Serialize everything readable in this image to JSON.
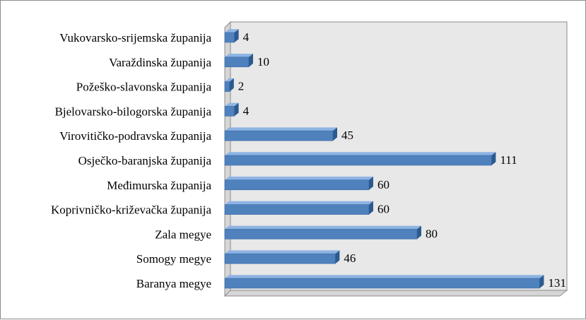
{
  "chart_data": {
    "type": "bar",
    "orientation": "horizontal",
    "style": "3d",
    "categories": [
      "Vukovarsko-srijemska županija",
      "Varaždinska županija",
      "Požeško-slavonska županija",
      "Bjelovarsko-bilogorska županija",
      "Virovitičko-podravska županija",
      "Osječko-baranjska županija",
      "Međimurska županija",
      "Koprivničko-križevačka županija",
      "Zala megye",
      "Somogy megye",
      "Baranya megye"
    ],
    "values": [
      4,
      10,
      2,
      4,
      45,
      111,
      60,
      60,
      80,
      46,
      131
    ],
    "value_labels": [
      "4",
      "10",
      "2",
      "4",
      "45",
      "111",
      "60",
      "60",
      "80",
      "46",
      "131"
    ],
    "title": "",
    "xlabel": "",
    "ylabel": "",
    "xlim": [
      0,
      140
    ],
    "grid": false,
    "legend": "none",
    "bar_color": "#4f81bd",
    "bar_top_color": "#8eb4e3",
    "bar_end_color": "#2c5a8f",
    "plot_wall_color": "#e8e8e8"
  }
}
